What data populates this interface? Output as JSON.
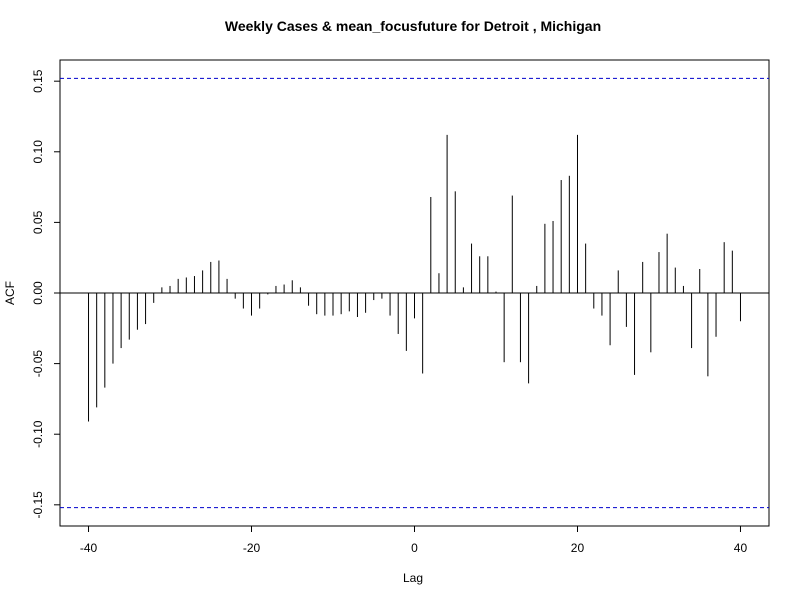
{
  "chart_data": {
    "type": "bar",
    "title": "Weekly Cases & mean_focusfuture for Detroit , Michigan",
    "xlabel": "Lag",
    "ylabel": "ACF",
    "xlim": [
      -43.5,
      43.5
    ],
    "ylim": [
      -0.165,
      0.165
    ],
    "x_ticks": [
      -40,
      -20,
      0,
      20,
      40
    ],
    "y_ticks": [
      -0.15,
      -0.1,
      -0.05,
      0.0,
      0.05,
      0.1,
      0.15
    ],
    "y_tick_labels": [
      "-0.15",
      "-0.10",
      "-0.05",
      "0.00",
      "0.05",
      "0.10",
      "0.15"
    ],
    "confidence_bound": 0.152,
    "bound_color": "#0000cc",
    "lags": [
      -40,
      -39,
      -38,
      -37,
      -36,
      -35,
      -34,
      -33,
      -32,
      -31,
      -30,
      -29,
      -28,
      -27,
      -26,
      -25,
      -24,
      -23,
      -22,
      -21,
      -20,
      -19,
      -18,
      -17,
      -16,
      -15,
      -14,
      -13,
      -12,
      -11,
      -10,
      -9,
      -8,
      -7,
      -6,
      -5,
      -4,
      -3,
      -2,
      -1,
      0,
      1,
      2,
      3,
      4,
      5,
      6,
      7,
      8,
      9,
      10,
      11,
      12,
      13,
      14,
      15,
      16,
      17,
      18,
      19,
      20,
      21,
      22,
      23,
      24,
      25,
      26,
      27,
      28,
      29,
      30,
      31,
      32,
      33,
      34,
      35,
      36,
      37,
      38,
      39,
      40
    ],
    "values": [
      -0.091,
      -0.081,
      -0.067,
      -0.05,
      -0.039,
      -0.033,
      -0.026,
      -0.022,
      -0.007,
      0.004,
      0.005,
      0.01,
      0.011,
      0.012,
      0.016,
      0.022,
      0.023,
      0.01,
      -0.004,
      -0.011,
      -0.016,
      -0.011,
      -0.001,
      0.005,
      0.006,
      0.009,
      0.004,
      -0.009,
      -0.015,
      -0.016,
      -0.016,
      -0.015,
      -0.013,
      -0.017,
      -0.014,
      -0.005,
      -0.004,
      -0.016,
      -0.029,
      -0.041,
      -0.018,
      -0.057,
      0.068,
      0.014,
      0.112,
      0.072,
      0.004,
      0.035,
      0.026,
      0.026,
      0.001,
      -0.049,
      0.069,
      -0.049,
      -0.064,
      0.005,
      0.049,
      0.051,
      0.08,
      0.083,
      0.112,
      0.035,
      -0.011,
      -0.016,
      -0.037,
      0.016,
      -0.024,
      -0.058,
      0.022,
      -0.042,
      0.029,
      0.042,
      0.018,
      0.005,
      -0.039,
      0.017,
      -0.059,
      -0.031,
      0.036,
      0.03,
      -0.02
    ]
  }
}
